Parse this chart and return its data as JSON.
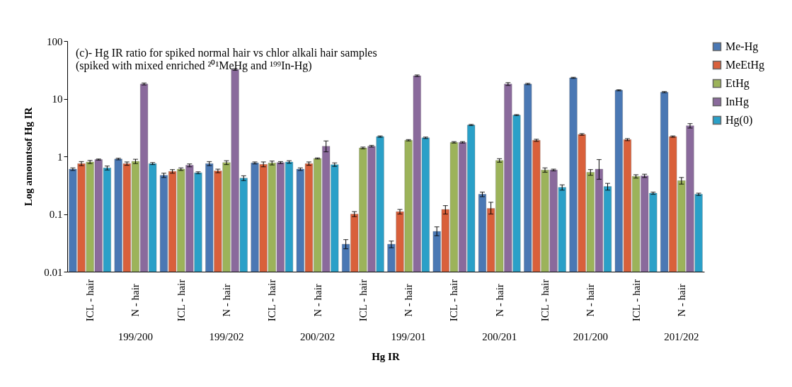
{
  "chart_data": {
    "type": "bar",
    "title": "(c)- Hg IR ratio for spiked normal hair vs chlor alkali hair samples",
    "subtitle": "(spiked with mixed enriched ²⁰¹MeHg and ¹⁹⁹In-Hg)",
    "xlabel": "Hg IR",
    "ylabel": "Log amountsof Hg IR",
    "categories": [
      "ICL - hair",
      "N - hair",
      "ICL - hair",
      "N - hair",
      "ICL - hair",
      "N - hair",
      "ICL - hair",
      "N - hair",
      "ICL - hair",
      "N - hair",
      "ICL - hair",
      "N - hair",
      "ICL - hair",
      "N - hair"
    ],
    "annotations": [
      "199/200",
      "199/202",
      "200/202",
      "199/201",
      "200/201",
      "201/200",
      "201/202"
    ],
    "log": "y",
    "ylim": [
      0.01,
      100
    ],
    "yticks": [
      0.01,
      0.1,
      1,
      10,
      100
    ],
    "grid": false,
    "legend": "right",
    "series": [
      {
        "name": "Me-Hg",
        "color": "#4a78b4",
        "values": [
          0.6,
          0.9,
          0.47,
          0.75,
          0.77,
          0.6,
          0.03,
          0.03,
          0.05,
          0.22,
          18,
          23,
          14,
          13
        ],
        "errors": [
          0.03,
          0.03,
          0.04,
          0.06,
          0.03,
          0.03,
          [
            0.025,
            0.036
          ],
          [
            0.026,
            0.034
          ],
          [
            0.042,
            0.06
          ],
          0.02,
          0.5,
          0.5,
          0.3,
          0.3
        ]
      },
      {
        "name": "MeEtHg",
        "color": "#d9603b",
        "values": [
          0.75,
          0.75,
          0.55,
          0.56,
          0.73,
          0.75,
          0.1,
          0.11,
          0.12,
          0.125,
          1.9,
          2.4,
          1.95,
          2.2
        ],
        "errors": [
          0.06,
          0.05,
          0.04,
          0.04,
          0.07,
          0.05,
          0.01,
          0.01,
          0.02,
          [
            0.1,
            0.16
          ],
          0.08,
          0.08,
          0.08,
          0.06
        ]
      },
      {
        "name": "EtHg",
        "color": "#9cb35a",
        "values": [
          0.8,
          0.82,
          0.6,
          0.78,
          0.77,
          0.92,
          1.4,
          1.9,
          1.75,
          0.85,
          0.58,
          0.53,
          0.45,
          0.38
        ],
        "errors": [
          0.05,
          0.07,
          0.03,
          0.06,
          0.06,
          0.02,
          0.05,
          0.05,
          0.05,
          0.06,
          0.05,
          0.06,
          0.03,
          0.05
        ]
      },
      {
        "name": "InHg",
        "color": "#8a6a9c",
        "values": [
          0.88,
          18,
          0.7,
          32,
          0.78,
          1.5,
          1.5,
          25,
          1.75,
          18,
          0.58,
          0.6,
          0.46,
          3.4
        ],
        "errors": [
          0.02,
          0.7,
          0.04,
          1,
          0.03,
          [
            1.2,
            1.85
          ],
          0.05,
          0.8,
          0.05,
          1,
          0.02,
          [
            0.4,
            0.88
          ],
          0.03,
          0.3
        ]
      },
      {
        "name": "Hg(0)",
        "color": "#2aa0c8",
        "values": [
          0.63,
          0.75,
          0.52,
          0.42,
          0.8,
          0.72,
          2.2,
          2.1,
          3.5,
          5.2,
          0.29,
          0.3,
          0.23,
          0.22
        ],
        "errors": [
          0.05,
          0.03,
          0.02,
          0.04,
          0.04,
          0.05,
          0.06,
          0.06,
          0.08,
          0.1,
          0.03,
          0.04,
          0.01,
          0.01
        ]
      }
    ]
  }
}
